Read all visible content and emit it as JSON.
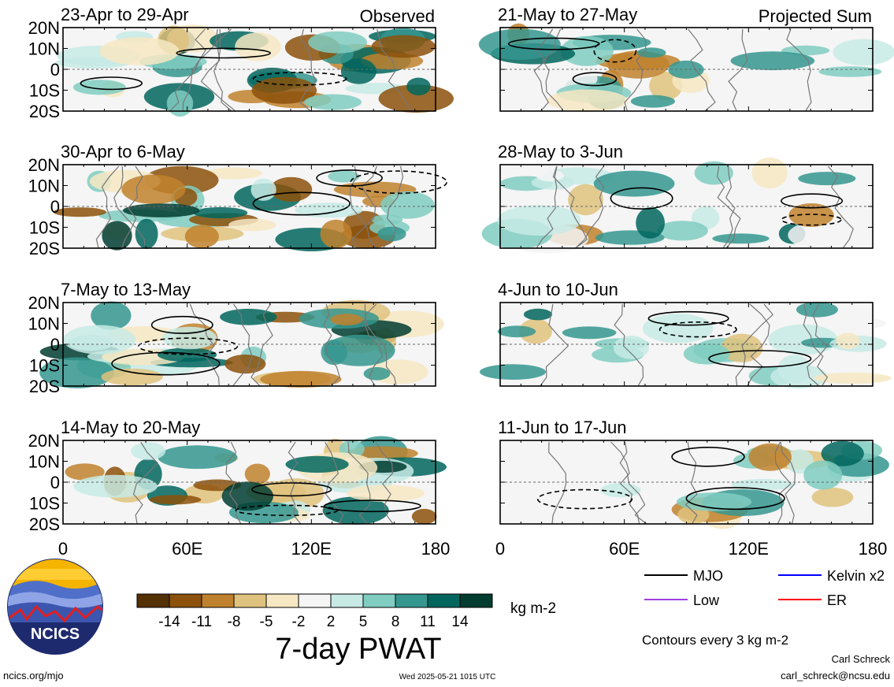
{
  "chart_data": {
    "type": "heatmap",
    "title": "7-day PWAT",
    "units": "kg m-2",
    "colorbar": {
      "labels": [
        "-14",
        "-11",
        "-8",
        "-5",
        "-2",
        "2",
        "5",
        "8",
        "11",
        "14"
      ],
      "colors": [
        "#543005",
        "#8c510a",
        "#bf812d",
        "#dfc27d",
        "#f6e8c3",
        "#f5f5f5",
        "#c7eae5",
        "#80cdc1",
        "#35978f",
        "#01665e",
        "#003c30"
      ]
    },
    "x_ticks": [
      "0",
      "60E",
      "120E",
      "180"
    ],
    "y_ticks": [
      "20N",
      "10N",
      "0",
      "10S",
      "20S"
    ],
    "observed_label": "Observed",
    "projected_label": "Projected Sum",
    "panels_left": [
      {
        "title": "23-Apr to 29-Apr"
      },
      {
        "title": "30-Apr to 6-May"
      },
      {
        "title": "7-May to 13-May"
      },
      {
        "title": "14-May to 20-May"
      }
    ],
    "panels_right": [
      {
        "title": "21-May to 27-May"
      },
      {
        "title": "28-May to 3-Jun"
      },
      {
        "title": "4-Jun to 10-Jun"
      },
      {
        "title": "11-Jun to 17-Jun"
      }
    ],
    "legend": [
      {
        "label": "MJO",
        "color": "#000000"
      },
      {
        "label": "Kelvin x2",
        "color": "#0000ff"
      },
      {
        "label": "Low",
        "color": "#a040e0"
      },
      {
        "label": "ER",
        "color": "#ff0000"
      }
    ],
    "contour_note": "Contours every 3 kg m-2"
  },
  "footer": {
    "site": "ncics.org/mjo",
    "timestamp": "Wed 2025-05-21 1015 UTC",
    "author": "Carl Schreck",
    "email": "carl_schreck@ncsu.edu",
    "logo_text": "NCICS"
  }
}
